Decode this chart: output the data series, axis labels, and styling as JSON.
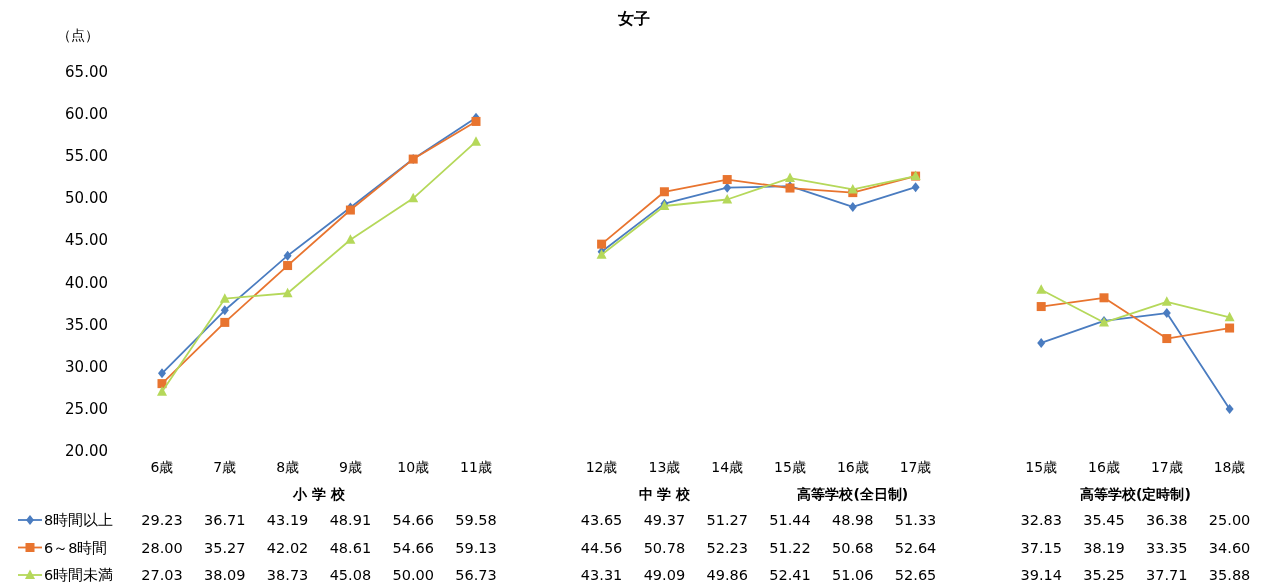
{
  "chart_data": {
    "type": "line",
    "title": "女子",
    "ylabel": "（点）",
    "categories": [
      "6歳",
      "7歳",
      "8歳",
      "9歳",
      "10歳",
      "11歳",
      null,
      "12歳",
      "13歳",
      "14歳",
      "15歳",
      "16歳",
      "17歳",
      null,
      "15歳",
      "16歳",
      "17歳",
      "18歳"
    ],
    "annotations": [
      "小 学 校",
      "中 学 校",
      "高等学校(全日制)",
      "高等学校(定時制)"
    ],
    "ylim": [
      20,
      65
    ],
    "yticks": [
      {
        "value": 20,
        "label": "20.00"
      },
      {
        "value": 25,
        "label": "25.00"
      },
      {
        "value": 30,
        "label": "30.00"
      },
      {
        "value": 35,
        "label": "35.00"
      },
      {
        "value": 40,
        "label": "40.00"
      },
      {
        "value": 45,
        "label": "45.00"
      },
      {
        "value": 50,
        "label": "50.00"
      },
      {
        "value": 55,
        "label": "55.00"
      },
      {
        "value": 60,
        "label": "60.00"
      },
      {
        "value": 65,
        "label": "65.00"
      }
    ],
    "legend": "bottom",
    "series": [
      {
        "name": "8時間以上",
        "color": "#4a7cc0",
        "marker": "diamond",
        "values": [
          29.23,
          36.71,
          43.19,
          48.91,
          54.66,
          59.58,
          null,
          43.65,
          49.37,
          51.27,
          51.44,
          48.98,
          51.33,
          null,
          32.83,
          35.45,
          36.38,
          25.0
        ],
        "value_labels": [
          "29.23",
          "36.71",
          "43.19",
          "48.91",
          "54.66",
          "59.58",
          null,
          "43.65",
          "49.37",
          "51.27",
          "51.44",
          "48.98",
          "51.33",
          null,
          "32.83",
          "35.45",
          "36.38",
          "25.00"
        ]
      },
      {
        "name": "6～8時間",
        "color": "#e8742f",
        "marker": "square",
        "values": [
          28.0,
          35.27,
          42.02,
          48.61,
          54.66,
          59.13,
          null,
          44.56,
          50.78,
          52.23,
          51.22,
          50.68,
          52.64,
          null,
          37.15,
          38.19,
          33.35,
          34.6
        ],
        "value_labels": [
          "28.00",
          "35.27",
          "42.02",
          "48.61",
          "54.66",
          "59.13",
          null,
          "44.56",
          "50.78",
          "52.23",
          "51.22",
          "50.68",
          "52.64",
          null,
          "37.15",
          "38.19",
          "33.35",
          "34.60"
        ]
      },
      {
        "name": "6時間未満",
        "color": "#b5d85a",
        "marker": "triangle",
        "values": [
          27.03,
          38.09,
          38.73,
          45.08,
          50.0,
          56.73,
          null,
          43.31,
          49.09,
          49.86,
          52.41,
          51.06,
          52.65,
          null,
          39.14,
          35.25,
          37.71,
          35.88
        ],
        "value_labels": [
          "27.03",
          "38.09",
          "38.73",
          "45.08",
          "50.00",
          "56.73",
          null,
          "43.31",
          "49.09",
          "49.86",
          "52.41",
          "51.06",
          "52.65",
          null,
          "39.14",
          "35.25",
          "37.71",
          "35.88"
        ]
      }
    ]
  }
}
